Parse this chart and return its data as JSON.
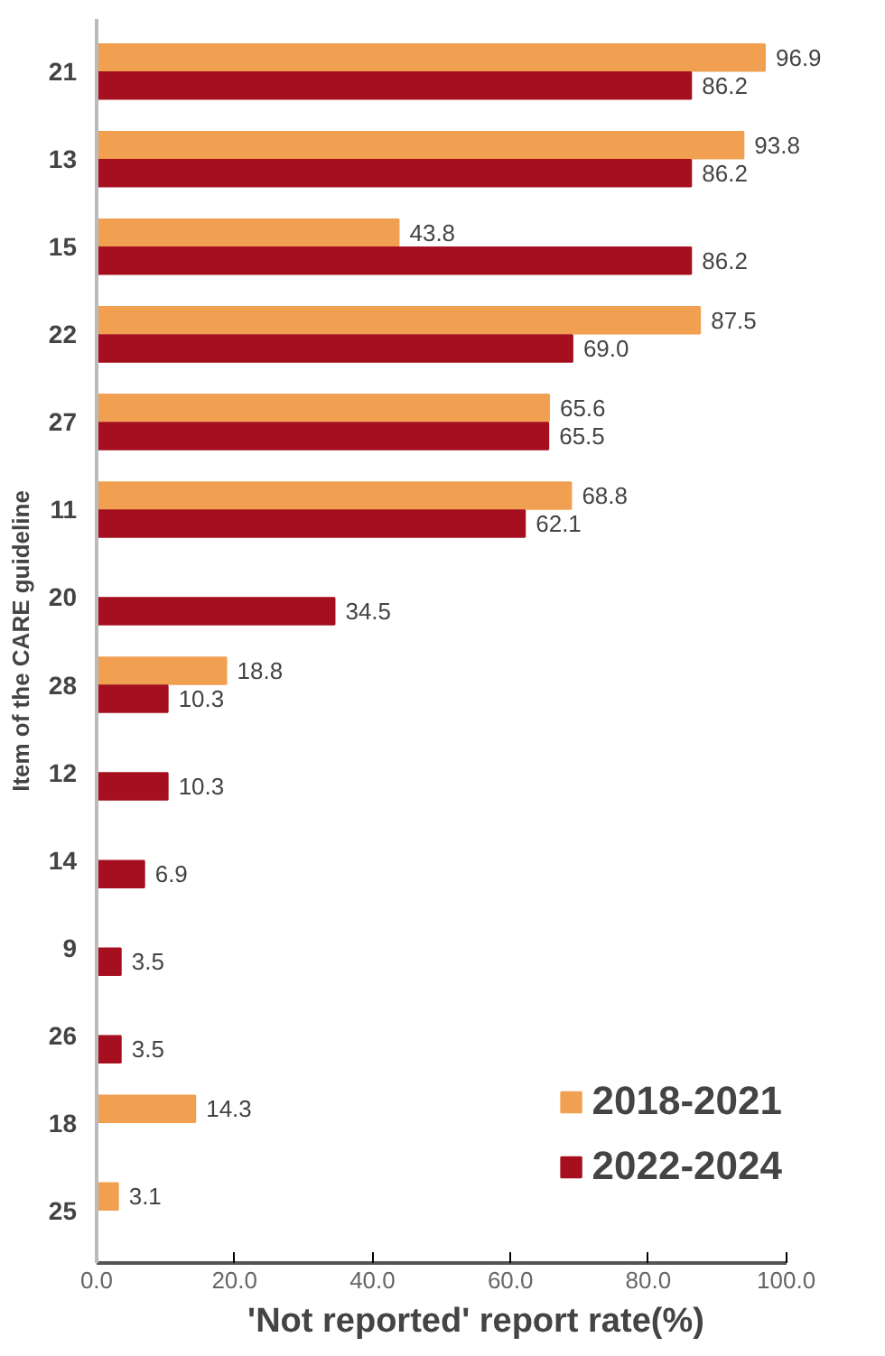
{
  "chart_data": {
    "type": "bar",
    "orientation": "horizontal",
    "xlabel": "'Not reported' report rate(%)",
    "ylabel": "Item of the CARE guideline",
    "categories": [
      "21",
      "13",
      "15",
      "22",
      "27",
      "11",
      "20",
      "28",
      "12",
      "14",
      "9",
      "26",
      "18",
      "25"
    ],
    "series": [
      {
        "name": "2018-2021",
        "color": "#f0a050",
        "values": [
          96.9,
          93.8,
          43.8,
          87.5,
          65.6,
          68.8,
          null,
          18.8,
          null,
          null,
          null,
          null,
          14.3,
          3.1
        ],
        "value_labels": [
          "96.9",
          "93.8",
          "43.8",
          "87.5",
          "65.6",
          "68.8",
          null,
          "18.8",
          null,
          null,
          null,
          null,
          "14.3",
          "3.1"
        ]
      },
      {
        "name": "2022-2024",
        "color": "#a50f1e",
        "values": [
          86.2,
          86.2,
          86.2,
          69.0,
          65.5,
          62.1,
          34.5,
          10.3,
          10.3,
          6.9,
          3.5,
          3.5,
          null,
          null
        ],
        "value_labels": [
          "86.2",
          "86.2",
          "86.2",
          "69.0",
          "65.5",
          "62.1",
          "34.5",
          "10.3",
          "10.3",
          "6.9",
          "3.5",
          "3.5",
          null,
          null
        ]
      }
    ],
    "xlim": [
      0,
      100
    ],
    "xticks": [
      {
        "value": 0,
        "label": "0.0"
      },
      {
        "value": 20,
        "label": "20.0"
      },
      {
        "value": 40,
        "label": "40.0"
      },
      {
        "value": 60,
        "label": "60.0"
      },
      {
        "value": 80,
        "label": "80.0"
      },
      {
        "value": 100,
        "label": "100.0"
      }
    ],
    "legend": "bottom right",
    "grid": false
  }
}
